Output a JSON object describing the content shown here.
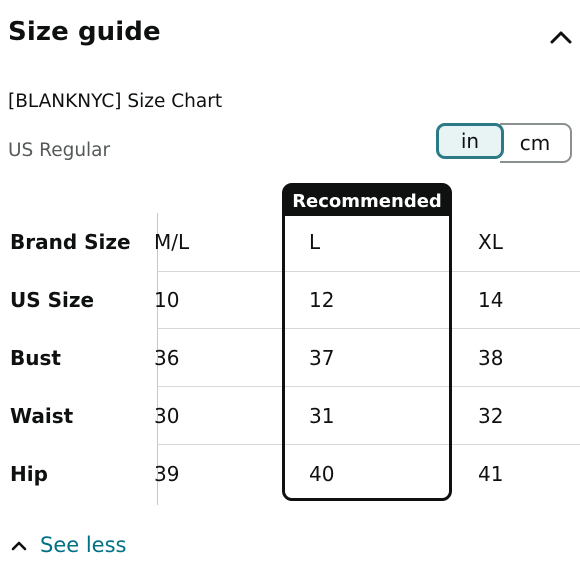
{
  "header": {
    "title": "Size guide",
    "collapse_icon": "chevron-up-icon"
  },
  "chart_name": "[BLANKNYC] Size Chart",
  "region": "US Regular",
  "units": {
    "in": "in",
    "cm": "cm",
    "selected": "in"
  },
  "table": {
    "recommended_label": "Recommended",
    "row_labels": [
      "Brand Size",
      "US Size",
      "Bust",
      "Waist",
      "Hip"
    ],
    "columns": [
      {
        "values": [
          "M/L",
          "10",
          "36",
          "30",
          "39"
        ]
      },
      {
        "values": [
          "L",
          "12",
          "37",
          "31",
          "40"
        ],
        "recommended": true
      },
      {
        "values": [
          "XL",
          "14",
          "38",
          "32",
          "41"
        ]
      }
    ]
  },
  "footer": {
    "see_less": "See less",
    "icon": "chevron-up-icon"
  },
  "colors": {
    "accent": "#007185",
    "toggle_border": "#2b7a86",
    "text": "#0f1111",
    "muted": "#565959"
  }
}
